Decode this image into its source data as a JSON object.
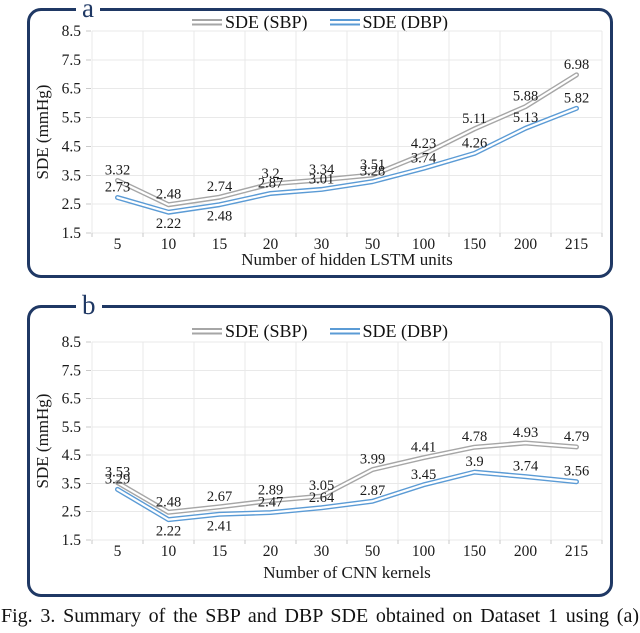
{
  "caption": "Fig. 3. Summary of the SBP and DBP SDE obtained on Dataset 1 using (a)",
  "colors": {
    "panel_border": "#1f3864",
    "sbp_line": "#a6a6a6",
    "dbp_line": "#5b9bd5",
    "gridline": "#e9e9e9",
    "tick_mark": "#c9c9c9",
    "text": "#1a1a1a"
  },
  "chart_data": [
    {
      "type": "line",
      "panel_label": "a",
      "categories": [
        "5",
        "10",
        "15",
        "20",
        "30",
        "50",
        "100",
        "150",
        "200",
        "215"
      ],
      "xlabel": "Number of hidden LSTM units",
      "ylabel": "SDE (mmHg)",
      "ylim": [
        1.5,
        8.5
      ],
      "yticks": [
        8.5,
        7.5,
        6.5,
        5.5,
        4.5,
        3.5,
        2.5,
        1.5
      ],
      "grid": true,
      "legend_position": "top-center",
      "series": [
        {
          "name": "SDE (SBP)",
          "color": "#a6a6a6",
          "values": [
            3.32,
            2.48,
            2.74,
            3.2,
            3.34,
            3.51,
            4.23,
            5.11,
            5.88,
            6.98
          ],
          "label_pos": [
            "above",
            "above",
            "above",
            "above",
            "above",
            "above",
            "above",
            "above",
            "above",
            "above"
          ]
        },
        {
          "name": "SDE (DBP)",
          "color": "#5b9bd5",
          "values": [
            2.73,
            2.22,
            2.48,
            2.87,
            3.01,
            3.28,
            3.74,
            4.26,
            5.13,
            5.82
          ],
          "label_pos": [
            "above",
            "below",
            "below",
            "above",
            "above",
            "above",
            "above",
            "above",
            "above",
            "above"
          ]
        }
      ]
    },
    {
      "type": "line",
      "panel_label": "b",
      "categories": [
        "5",
        "10",
        "15",
        "20",
        "30",
        "50",
        "100",
        "150",
        "200",
        "215"
      ],
      "xlabel": "Number of CNN kernels",
      "ylabel": "SDE (mmHg)",
      "ylim": [
        1.5,
        8.5
      ],
      "yticks": [
        8.5,
        7.5,
        6.5,
        5.5,
        4.5,
        3.5,
        2.5,
        1.5
      ],
      "grid": true,
      "legend_position": "top-center",
      "series": [
        {
          "name": "SDE (SBP)",
          "color": "#a6a6a6",
          "values": [
            3.53,
            2.48,
            2.67,
            2.89,
            3.05,
            3.99,
            4.41,
            4.78,
            4.93,
            4.79
          ],
          "label_pos": [
            "above",
            "above",
            "above",
            "above",
            "above",
            "above",
            "above",
            "above",
            "above",
            "above"
          ]
        },
        {
          "name": "SDE (DBP)",
          "color": "#5b9bd5",
          "values": [
            3.29,
            2.22,
            2.41,
            2.47,
            2.64,
            2.87,
            3.45,
            3.9,
            3.74,
            3.56
          ],
          "label_pos": [
            "above",
            "below",
            "below",
            "above",
            "above",
            "above",
            "above",
            "above",
            "above",
            "above"
          ]
        }
      ]
    }
  ]
}
